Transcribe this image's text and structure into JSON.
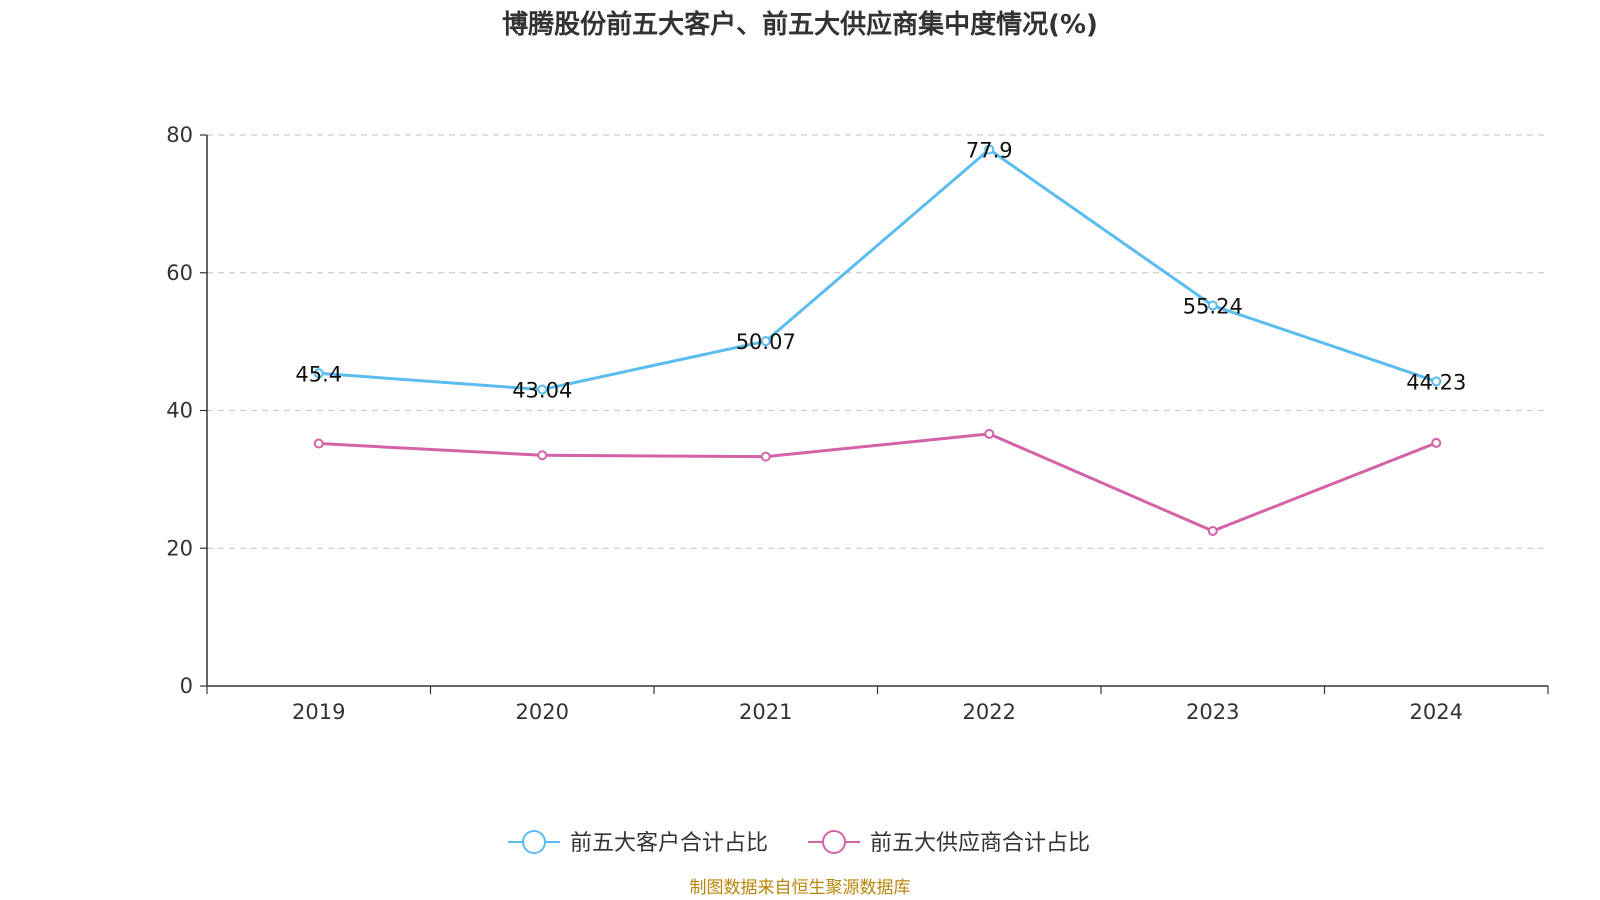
{
  "chart_data": {
    "type": "line",
    "title": "博腾股份前五大客户、前五大供应商集中度情况(%)",
    "categories": [
      "2019",
      "2020",
      "2021",
      "2022",
      "2023",
      "2024"
    ],
    "ylim": [
      0,
      80
    ],
    "yticks": [
      "0",
      "20",
      "40",
      "60",
      "80"
    ],
    "grid": true,
    "legend_position": "bottom-center",
    "series": [
      {
        "name": "前五大客户合计占比",
        "color": "#5bbcef",
        "values": [
          45.4,
          43.04,
          50.07,
          77.9,
          55.24,
          44.23
        ],
        "labels": [
          "45.4",
          "43.04",
          "50.07",
          "77.9",
          "55.24",
          "44.23"
        ],
        "show_labels": true
      },
      {
        "name": "前五大供应商合计占比",
        "color": "#d462a6",
        "values": [
          35.2,
          33.5,
          33.3,
          36.6,
          22.5,
          35.3
        ],
        "show_labels": false
      }
    ]
  },
  "source": "制图数据来自恒生聚源数据库"
}
